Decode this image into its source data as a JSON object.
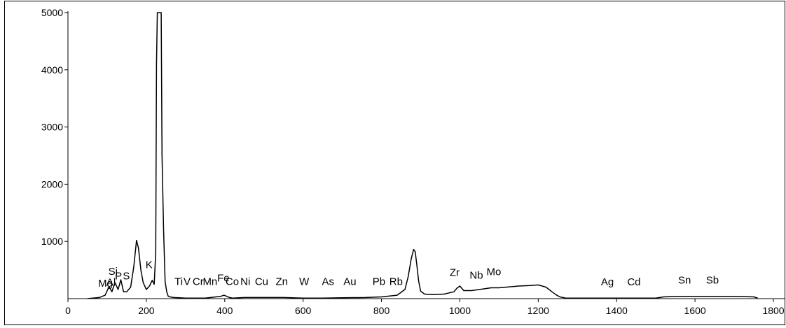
{
  "chart_data": {
    "type": "line",
    "xlim": [
      0,
      1800
    ],
    "ylim": [
      0,
      5000
    ],
    "x_ticks": [
      0,
      200,
      400,
      600,
      800,
      1000,
      1200,
      1400,
      1600,
      1800
    ],
    "y_ticks": [
      1000,
      2000,
      3000,
      4000,
      5000
    ],
    "grid": false,
    "legend": "none",
    "line_color": "#000000",
    "series": [
      {
        "x": [
          50,
          80,
          95,
          105,
          112,
          120,
          128,
          135,
          142,
          150,
          160,
          168,
          175,
          180,
          186,
          192,
          200,
          208,
          215,
          220,
          224,
          226,
          228,
          230,
          232,
          234,
          236,
          238,
          240,
          244,
          248,
          252,
          256,
          260,
          270,
          300,
          350,
          390,
          398,
          405,
          412,
          420,
          450,
          500,
          550,
          600,
          650,
          700,
          760,
          800,
          840,
          860,
          868,
          876,
          882,
          886,
          890,
          895,
          900,
          910,
          930,
          960,
          985,
          992,
          1000,
          1010,
          1030,
          1060,
          1080,
          1100,
          1150,
          1180,
          1200,
          1220,
          1235,
          1245,
          1255,
          1270,
          1400,
          1500,
          1520,
          1560,
          1600,
          1650,
          1700,
          1750,
          1760
        ],
        "y": [
          0,
          20,
          60,
          210,
          120,
          280,
          160,
          330,
          120,
          120,
          200,
          560,
          1020,
          880,
          500,
          280,
          160,
          220,
          320,
          250,
          800,
          4100,
          5000,
          5000,
          5000,
          5000,
          5000,
          5000,
          2500,
          1200,
          300,
          120,
          40,
          30,
          20,
          10,
          10,
          40,
          60,
          40,
          20,
          10,
          20,
          20,
          20,
          10,
          10,
          15,
          20,
          30,
          60,
          160,
          380,
          700,
          860,
          820,
          600,
          300,
          130,
          80,
          70,
          80,
          120,
          180,
          220,
          140,
          140,
          170,
          190,
          190,
          220,
          230,
          240,
          200,
          120,
          70,
          30,
          10,
          10,
          10,
          30,
          40,
          40,
          40,
          40,
          30,
          10
        ]
      }
    ],
    "annotations": [
      {
        "text": "Mg",
        "x": 77,
        "y": 210
      },
      {
        "text": "Al",
        "x": 98,
        "y": 225
      },
      {
        "text": "Si",
        "x": 103,
        "y": 415
      },
      {
        "text": "P",
        "x": 120,
        "y": 335
      },
      {
        "text": "S",
        "x": 140,
        "y": 335
      },
      {
        "text": "K",
        "x": 198,
        "y": 530
      },
      {
        "text": "Ti",
        "x": 272,
        "y": 240
      },
      {
        "text": "V",
        "x": 295,
        "y": 240
      },
      {
        "text": "Cr",
        "x": 318,
        "y": 240
      },
      {
        "text": "Mn",
        "x": 344,
        "y": 240
      },
      {
        "text": "Fe",
        "x": 381,
        "y": 300
      },
      {
        "text": "Co",
        "x": 402,
        "y": 240
      },
      {
        "text": "Ni",
        "x": 440,
        "y": 240
      },
      {
        "text": "Cu",
        "x": 477,
        "y": 240
      },
      {
        "text": "Zn",
        "x": 530,
        "y": 240
      },
      {
        "text": "W",
        "x": 590,
        "y": 240
      },
      {
        "text": "As",
        "x": 648,
        "y": 240
      },
      {
        "text": "Au",
        "x": 703,
        "y": 240
      },
      {
        "text": "Pb",
        "x": 777,
        "y": 240
      },
      {
        "text": "Rb",
        "x": 820,
        "y": 240
      },
      {
        "text": "Zr",
        "x": 974,
        "y": 395
      },
      {
        "text": "Nb",
        "x": 1025,
        "y": 350
      },
      {
        "text": "Mo",
        "x": 1068,
        "y": 410
      },
      {
        "text": "Ag",
        "x": 1360,
        "y": 230
      },
      {
        "text": "Cd",
        "x": 1427,
        "y": 230
      },
      {
        "text": "Sn",
        "x": 1557,
        "y": 265
      },
      {
        "text": "Sb",
        "x": 1628,
        "y": 265
      }
    ]
  }
}
